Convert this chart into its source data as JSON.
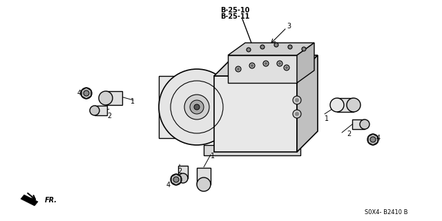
{
  "bg_color": "#ffffff",
  "line_color": "#000000",
  "gray_color": "#888888",
  "light_gray": "#cccccc",
  "dark_gray": "#555555",
  "title_parts": [
    "B-25-10",
    "B-25-11"
  ],
  "part_number": "S0X4- B2410 B",
  "fr_label": "FR.",
  "figsize": [
    6.4,
    3.2
  ],
  "dpi": 100
}
